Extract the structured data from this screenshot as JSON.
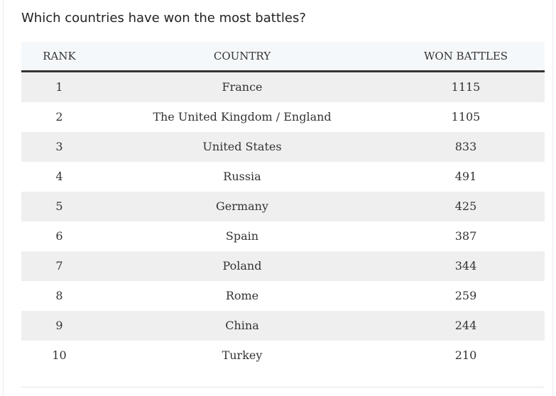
{
  "question": "Which countries have won the most battles?",
  "table": {
    "headers": {
      "rank": "RANK",
      "country": "COUNTRY",
      "won": "WON BATTLES"
    },
    "rows": [
      {
        "rank": "1",
        "country": "France",
        "won": "1115"
      },
      {
        "rank": "2",
        "country": "The United Kingdom / England",
        "won": "1105"
      },
      {
        "rank": "3",
        "country": "United States",
        "won": "833"
      },
      {
        "rank": "4",
        "country": "Russia",
        "won": "491"
      },
      {
        "rank": "5",
        "country": "Germany",
        "won": "425"
      },
      {
        "rank": "6",
        "country": "Spain",
        "won": "387"
      },
      {
        "rank": "7",
        "country": "Poland",
        "won": "344"
      },
      {
        "rank": "8",
        "country": "Rome",
        "won": "259"
      },
      {
        "rank": "9",
        "country": "China",
        "won": "244"
      },
      {
        "rank": "10",
        "country": "Turkey",
        "won": "210"
      }
    ]
  },
  "colors": {
    "header_bg": "#f5f8fa",
    "header_rule": "#333333",
    "stripe_bg": "#efefef",
    "text": "#333333"
  }
}
